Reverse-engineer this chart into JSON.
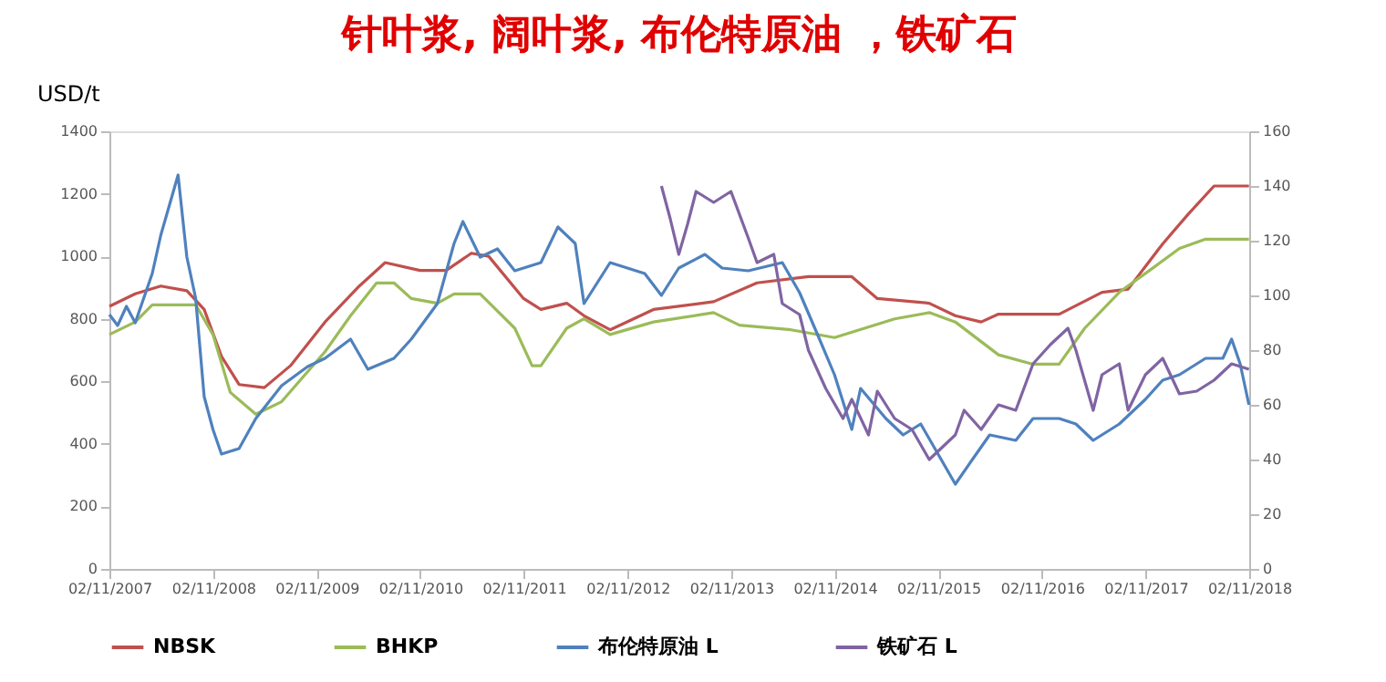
{
  "chart_data": {
    "type": "line",
    "title": "针叶浆, 阔叶浆, 布伦特原油 ，铁矿石",
    "ylabel": "USD/t",
    "grid": false,
    "legend": "bottom",
    "marker": "none",
    "line_style": "solid",
    "xlim": [
      "2007-11-02",
      "2018-11-02"
    ],
    "xticks": [
      {
        "value": "2007-11-02",
        "label": "02/11/2007"
      },
      {
        "value": "2008-11-02",
        "label": "02/11/2008"
      },
      {
        "value": "2009-11-02",
        "label": "02/11/2009"
      },
      {
        "value": "2010-11-02",
        "label": "02/11/2010"
      },
      {
        "value": "2011-11-02",
        "label": "02/11/2011"
      },
      {
        "value": "2012-11-02",
        "label": "02/11/2012"
      },
      {
        "value": "2013-11-02",
        "label": "02/11/2013"
      },
      {
        "value": "2014-11-02",
        "label": "02/11/2014"
      },
      {
        "value": "2015-11-02",
        "label": "02/11/2015"
      },
      {
        "value": "2016-11-02",
        "label": "02/11/2016"
      },
      {
        "value": "2017-11-02",
        "label": "02/11/2017"
      },
      {
        "value": "2018-11-02",
        "label": "02/11/2018"
      }
    ],
    "ylim": [
      0,
      1400
    ],
    "yticks": [
      0,
      200,
      400,
      600,
      800,
      1000,
      1200,
      1400
    ],
    "y2lim": [
      0,
      160
    ],
    "y2ticks": [
      0,
      20,
      40,
      60,
      80,
      100,
      120,
      140,
      160
    ],
    "series": [
      {
        "name": "NBSK",
        "color": "#c0504d",
        "x": [
          "2007-11-02",
          "2008-02",
          "2008-05",
          "2008-08",
          "2008-10",
          "2008-12",
          "2009-02",
          "2009-05",
          "2009-08",
          "2009-12",
          "2010-04",
          "2010-07",
          "2010-11",
          "2011-02",
          "2011-05",
          "2011-07",
          "2011-11",
          "2012-01",
          "2012-04",
          "2012-06",
          "2012-09",
          "2013-02",
          "2013-09",
          "2014-02",
          "2014-08",
          "2015-01",
          "2015-04",
          "2015-10",
          "2016-01",
          "2016-04",
          "2016-06",
          "2017-01",
          "2017-06",
          "2017-09",
          "2018-01",
          "2018-04",
          "2018-07",
          "2018-11"
        ],
        "values": [
          840,
          880,
          905,
          890,
          830,
          680,
          590,
          580,
          650,
          790,
          905,
          980,
          955,
          955,
          1010,
          1000,
          865,
          830,
          850,
          810,
          765,
          830,
          855,
          915,
          935,
          935,
          865,
          850,
          810,
          790,
          815,
          815,
          885,
          895,
          1040,
          1135,
          1225,
          1225
        ]
      },
      {
        "name": "BHKP",
        "color": "#9bbb59",
        "x": [
          "2007-11-02",
          "2008-02",
          "2008-04",
          "2008-09",
          "2008-11",
          "2009-01",
          "2009-04",
          "2009-07",
          "2009-12",
          "2010-03",
          "2010-06",
          "2010-08",
          "2010-10",
          "2011-01",
          "2011-03",
          "2011-06",
          "2011-10",
          "2011-12",
          "2012-01",
          "2012-04",
          "2012-06",
          "2012-09",
          "2013-02",
          "2013-09",
          "2013-12",
          "2014-06",
          "2014-11",
          "2015-06",
          "2015-10",
          "2016-01",
          "2016-06",
          "2016-10",
          "2017-01",
          "2017-04",
          "2017-08",
          "2017-12",
          "2018-03",
          "2018-06",
          "2018-11"
        ],
        "values": [
          750,
          790,
          845,
          845,
          750,
          565,
          495,
          535,
          695,
          810,
          915,
          915,
          865,
          850,
          880,
          880,
          770,
          650,
          650,
          770,
          800,
          750,
          790,
          820,
          780,
          765,
          740,
          800,
          820,
          790,
          685,
          655,
          655,
          770,
          885,
          965,
          1025,
          1055,
          1055
        ]
      },
      {
        "name": "布伦特原油 L",
        "color": "#4f81bd",
        "axis": "y2",
        "x": [
          "2007-11-02",
          "2007-12",
          "2008-01",
          "2008-02",
          "2008-04",
          "2008-05",
          "2008-07",
          "2008-08",
          "2008-09",
          "2008-10",
          "2008-11",
          "2008-12",
          "2009-02",
          "2009-04",
          "2009-07",
          "2009-10",
          "2009-12",
          "2010-03",
          "2010-05",
          "2010-08",
          "2010-10",
          "2011-01",
          "2011-03",
          "2011-04",
          "2011-06",
          "2011-08",
          "2011-10",
          "2012-01",
          "2012-03",
          "2012-05",
          "2012-06",
          "2012-09",
          "2012-11",
          "2013-01",
          "2013-03",
          "2013-05",
          "2013-08",
          "2013-10",
          "2014-01",
          "2014-05",
          "2014-07",
          "2014-09",
          "2014-11",
          "2015-01",
          "2015-02",
          "2015-05",
          "2015-07",
          "2015-09",
          "2015-11",
          "2016-01",
          "2016-03",
          "2016-05",
          "2016-08",
          "2016-10",
          "2017-01",
          "2017-03",
          "2017-05",
          "2017-08",
          "2017-11",
          "2018-01",
          "2018-03",
          "2018-06",
          "2018-08",
          "2018-09",
          "2018-10",
          "2018-11"
        ],
        "values": [
          93,
          89,
          96,
          90,
          108,
          122,
          144,
          114,
          99,
          63,
          51,
          42,
          44,
          55,
          67,
          74,
          77,
          84,
          73,
          77,
          84,
          97,
          119,
          127,
          114,
          117,
          109,
          112,
          125,
          119,
          97,
          112,
          110,
          108,
          100,
          110,
          115,
          110,
          109,
          112,
          101,
          86,
          71,
          51,
          66,
          55,
          49,
          53,
          42,
          31,
          40,
          49,
          47,
          55,
          55,
          53,
          47,
          53,
          62,
          69,
          71,
          77,
          77,
          84,
          75,
          60
        ]
      },
      {
        "name": "铁矿石 L",
        "color": "#8064a2",
        "axis": "y2",
        "x": [
          "2013-03",
          "2013-04",
          "2013-05",
          "2013-06",
          "2013-07",
          "2013-09",
          "2013-11",
          "2014-01",
          "2014-02",
          "2014-04",
          "2014-05",
          "2014-07",
          "2014-08",
          "2014-10",
          "2014-12",
          "2015-01",
          "2015-03",
          "2015-04",
          "2015-06",
          "2015-08",
          "2015-10",
          "2016-01",
          "2016-02",
          "2016-04",
          "2016-06",
          "2016-08",
          "2016-10",
          "2016-12",
          "2017-02",
          "2017-03",
          "2017-05",
          "2017-06",
          "2017-08",
          "2017-09",
          "2017-11",
          "2018-01",
          "2018-03",
          "2018-05",
          "2018-07",
          "2018-09",
          "2018-11"
        ],
        "values": [
          140,
          128,
          115,
          126,
          138,
          134,
          138,
          121,
          112,
          115,
          97,
          93,
          80,
          66,
          55,
          62,
          49,
          65,
          55,
          51,
          40,
          49,
          58,
          51,
          60,
          58,
          75,
          82,
          88,
          80,
          58,
          71,
          75,
          58,
          71,
          77,
          64,
          65,
          69,
          75,
          73
        ]
      }
    ]
  }
}
